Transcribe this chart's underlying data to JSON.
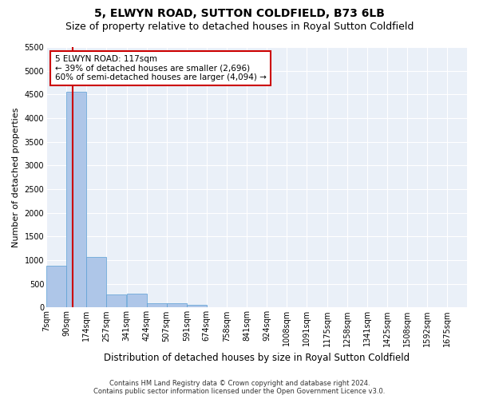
{
  "title": "5, ELWYN ROAD, SUTTON COLDFIELD, B73 6LB",
  "subtitle": "Size of property relative to detached houses in Royal Sutton Coldfield",
  "xlabel": "Distribution of detached houses by size in Royal Sutton Coldfield",
  "ylabel": "Number of detached properties",
  "bin_labels": [
    "7sqm",
    "90sqm",
    "174sqm",
    "257sqm",
    "341sqm",
    "424sqm",
    "507sqm",
    "591sqm",
    "674sqm",
    "758sqm",
    "841sqm",
    "924sqm",
    "1008sqm",
    "1091sqm",
    "1175sqm",
    "1258sqm",
    "1341sqm",
    "1425sqm",
    "1508sqm",
    "1592sqm",
    "1675sqm"
  ],
  "bin_edges": [
    7,
    90,
    174,
    257,
    341,
    424,
    507,
    591,
    674,
    758,
    841,
    924,
    1008,
    1091,
    1175,
    1258,
    1341,
    1425,
    1508,
    1592,
    1675
  ],
  "bar_heights": [
    880,
    4550,
    1060,
    280,
    290,
    95,
    90,
    60,
    0,
    0,
    0,
    0,
    0,
    0,
    0,
    0,
    0,
    0,
    0,
    0
  ],
  "bar_color": "#aec6e8",
  "bar_edge_color": "#5a9fd4",
  "property_line_x": 117,
  "property_line_color": "#cc0000",
  "annotation_line1": "5 ELWYN ROAD: 117sqm",
  "annotation_line2": "← 39% of detached houses are smaller (2,696)",
  "annotation_line3": "60% of semi-detached houses are larger (4,094) →",
  "annotation_box_color": "#ffffff",
  "annotation_box_edge": "#cc0000",
  "ylim": [
    0,
    5500
  ],
  "yticks": [
    0,
    500,
    1000,
    1500,
    2000,
    2500,
    3000,
    3500,
    4000,
    4500,
    5000,
    5500
  ],
  "background_color": "#eaf0f8",
  "grid_color": "#ffffff",
  "footer_line1": "Contains HM Land Registry data © Crown copyright and database right 2024.",
  "footer_line2": "Contains public sector information licensed under the Open Government Licence v3.0.",
  "title_fontsize": 10,
  "subtitle_fontsize": 9,
  "tick_fontsize": 7,
  "ylabel_fontsize": 8,
  "xlabel_fontsize": 8.5
}
